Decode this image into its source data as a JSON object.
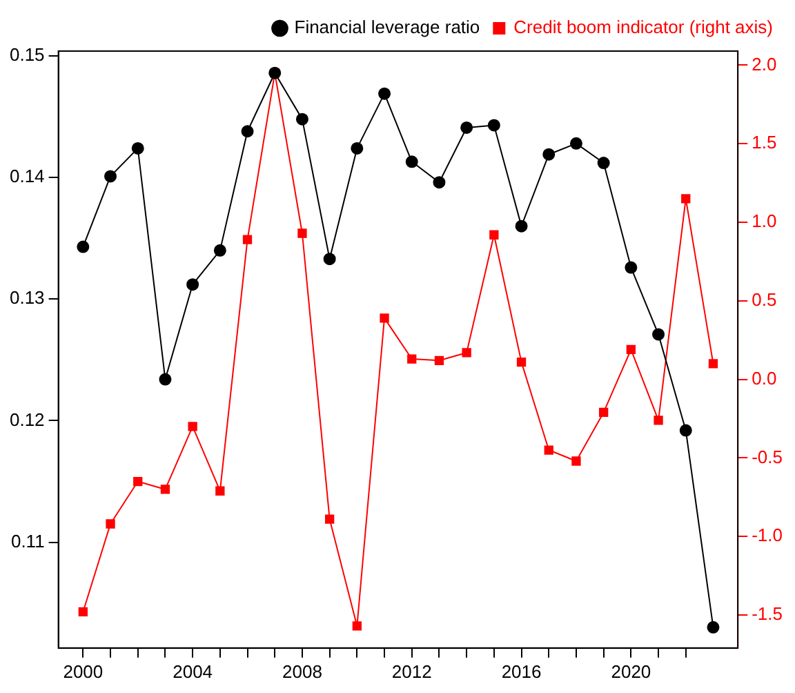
{
  "chart_data": {
    "type": "line",
    "x": [
      2000,
      2001,
      2002,
      2003,
      2004,
      2005,
      2006,
      2007,
      2008,
      2009,
      2010,
      2011,
      2012,
      2013,
      2014,
      2015,
      2016,
      2017,
      2018,
      2019,
      2020,
      2021,
      2022,
      2023
    ],
    "series": [
      {
        "name": "Financial leverage ratio",
        "color": "#000000",
        "marker": "circle",
        "values": [
          0.1343,
          0.1401,
          0.1424,
          0.1234,
          0.1312,
          0.134,
          0.1438,
          0.1486,
          0.1448,
          0.1333,
          0.1424,
          0.1469,
          0.1413,
          0.1396,
          0.1441,
          0.1443,
          0.136,
          0.1419,
          0.1428,
          0.1412,
          0.1326,
          0.1271,
          0.1192,
          0.103
        ]
      },
      {
        "name": "Credit boom indicator (right axis)",
        "color": "#ff0000",
        "marker": "square",
        "axis": "y2",
        "values": [
          -1.48,
          -0.92,
          -0.65,
          -0.7,
          -0.3,
          -0.71,
          0.89,
          1.95,
          0.93,
          -0.89,
          -1.57,
          0.39,
          0.13,
          0.12,
          0.17,
          0.92,
          0.11,
          -0.45,
          -0.52,
          -0.21,
          0.19,
          -0.26,
          1.15,
          0.1
        ]
      }
    ],
    "xlim": [
      1999.1,
      2023.9
    ],
    "xticks": [
      2000,
      {
        "value": 2001,
        "label": null
      },
      {
        "value": 2002,
        "label": null
      },
      {
        "value": 2003,
        "label": null
      },
      2004,
      {
        "value": 2005,
        "label": null
      },
      {
        "value": 2006,
        "label": null
      },
      {
        "value": 2007,
        "label": null
      },
      2008,
      {
        "value": 2009,
        "label": null
      },
      {
        "value": 2010,
        "label": null
      },
      {
        "value": 2011,
        "label": null
      },
      2012,
      {
        "value": 2013,
        "label": null
      },
      {
        "value": 2014,
        "label": null
      },
      {
        "value": 2015,
        "label": null
      },
      2016,
      {
        "value": 2017,
        "label": null
      },
      {
        "value": 2018,
        "label": null
      },
      {
        "value": 2019,
        "label": null
      },
      2020,
      {
        "value": 2021,
        "label": null
      },
      {
        "value": 2022,
        "label": null
      }
    ],
    "ylim": [
      0.1013,
      0.1504
    ],
    "yticks": [
      0.11,
      0.12,
      0.13,
      0.14,
      0.15
    ],
    "y2lim": [
      -1.71,
      2.09
    ],
    "y2ticks": [
      -1.5,
      {
        "value": -1,
        "label": "-1.0"
      },
      -0.5,
      {
        "value": 0,
        "label": "0.0"
      },
      0.5,
      {
        "value": 1,
        "label": "1.0"
      },
      1.5,
      {
        "value": 2,
        "label": "2.0"
      }
    ],
    "grid": false,
    "legend": "top right"
  }
}
